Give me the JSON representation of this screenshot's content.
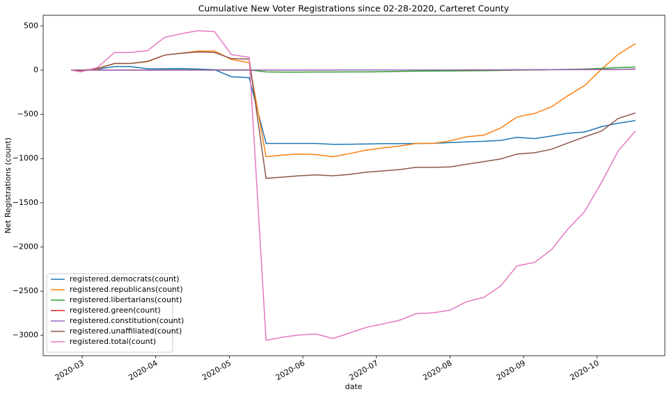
{
  "chart_data": {
    "type": "line",
    "title": "Cumulative New Voter Registrations since 02-28-2020, Carteret County",
    "x_label": "date",
    "y_label": "Net Registrations (count)",
    "x": [
      2.85,
      2.98,
      3.21,
      3.44,
      3.66,
      3.89,
      4.12,
      4.34,
      4.57,
      4.8,
      5.03,
      5.27,
      5.5,
      5.73,
      5.95,
      6.18,
      6.41,
      6.63,
      6.86,
      7.09,
      7.31,
      7.54,
      7.77,
      8.0,
      8.22,
      8.46,
      8.69,
      8.91,
      9.15,
      9.38,
      9.6,
      9.83,
      10.06,
      10.29,
      10.52
    ],
    "xlim": [
      2.47,
      10.92
    ],
    "xticks": [
      {
        "value": 3,
        "label": "2020-03"
      },
      {
        "value": 4,
        "label": "2020-04"
      },
      {
        "value": 5,
        "label": "2020-05"
      },
      {
        "value": 6,
        "label": "2020-06"
      },
      {
        "value": 7,
        "label": "2020-07"
      },
      {
        "value": 8,
        "label": "2020-08"
      },
      {
        "value": 9,
        "label": "2020-09"
      },
      {
        "value": 10,
        "label": "2020-10"
      }
    ],
    "ylim": [
      -3230,
      620
    ],
    "yticks": [
      500,
      0,
      {
        "value": -500,
        "label": "−500"
      },
      {
        "value": -1000,
        "label": "−1000"
      },
      {
        "value": -1500,
        "label": "−1500"
      },
      {
        "value": -2000,
        "label": "−2000"
      },
      {
        "value": -2500,
        "label": "−2500"
      },
      {
        "value": -3000,
        "label": "−3000"
      }
    ],
    "legend": "lower left",
    "series": [
      {
        "name": "registered.democrats(count)",
        "color": "#1f77b4",
        "values": [
          0,
          -5,
          10,
          40,
          40,
          15,
          15,
          18,
          12,
          5,
          -75,
          -85,
          -830,
          -830,
          -830,
          -830,
          -840,
          -838,
          -835,
          -832,
          -832,
          -830,
          -828,
          -820,
          -812,
          -805,
          -795,
          -760,
          -775,
          -745,
          -715,
          -700,
          -640,
          -600,
          -570
        ]
      },
      {
        "name": "registered.republicans(count)",
        "color": "#ff7f0e",
        "values": [
          0,
          -5,
          15,
          75,
          75,
          95,
          170,
          190,
          215,
          215,
          120,
          85,
          -980,
          -960,
          -950,
          -955,
          -980,
          -945,
          -905,
          -880,
          -860,
          -830,
          -830,
          -800,
          -755,
          -735,
          -655,
          -530,
          -490,
          -415,
          -290,
          -175,
          10,
          180,
          300
        ]
      },
      {
        "name": "registered.libertarians(count)",
        "color": "#2ca02c",
        "values": [
          0,
          0,
          0,
          2,
          2,
          2,
          3,
          3,
          3,
          3,
          3,
          3,
          -20,
          -22,
          -22,
          -21,
          -21,
          -20,
          -20,
          -18,
          -15,
          -12,
          -10,
          -9,
          -8,
          -6,
          -4,
          0,
          2,
          5,
          8,
          12,
          20,
          28,
          35
        ]
      },
      {
        "name": "registered.green(count)",
        "color": "#d62728",
        "values": [
          0,
          0,
          0,
          0,
          0,
          0,
          0,
          0,
          0,
          0,
          0,
          0,
          0,
          0,
          0,
          0,
          0,
          1,
          1,
          1,
          1,
          1,
          1,
          1,
          2,
          2,
          2,
          3,
          3,
          4,
          5,
          6,
          7,
          8,
          10
        ]
      },
      {
        "name": "registered.constitution(count)",
        "color": "#9467bd",
        "values": [
          0,
          0,
          0,
          0,
          0,
          0,
          0,
          0,
          0,
          0,
          0,
          0,
          1,
          1,
          1,
          1,
          1,
          1,
          1,
          2,
          2,
          2,
          2,
          2,
          3,
          3,
          3,
          4,
          4,
          5,
          6,
          7,
          8,
          9,
          12
        ]
      },
      {
        "name": "registered.unaffiliated(count)",
        "color": "#8c564b",
        "values": [
          0,
          -5,
          20,
          75,
          75,
          100,
          170,
          190,
          205,
          200,
          130,
          125,
          -1225,
          -1210,
          -1195,
          -1185,
          -1195,
          -1180,
          -1155,
          -1140,
          -1125,
          -1100,
          -1100,
          -1095,
          -1065,
          -1035,
          -1005,
          -950,
          -935,
          -895,
          -825,
          -755,
          -690,
          -545,
          -485
        ]
      },
      {
        "name": "registered.total(count)",
        "color": "#e377c2",
        "values": [
          0,
          -20,
          30,
          200,
          200,
          220,
          370,
          410,
          445,
          435,
          175,
          145,
          -3055,
          -3020,
          -2995,
          -2985,
          -3035,
          -2975,
          -2910,
          -2870,
          -2830,
          -2755,
          -2745,
          -2715,
          -2620,
          -2570,
          -2440,
          -2215,
          -2175,
          -2030,
          -1800,
          -1600,
          -1270,
          -910,
          -690
        ]
      }
    ]
  }
}
